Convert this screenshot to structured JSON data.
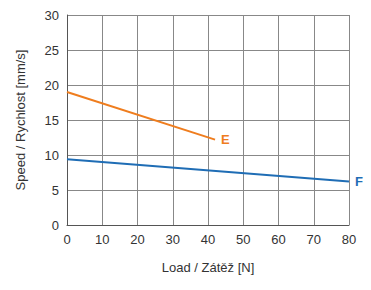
{
  "chart_data": {
    "type": "line",
    "x_label": "Load / Zátěž [N]",
    "y_label": "Speed / Rychlost [mm/s]",
    "series": [
      {
        "name": "E",
        "color": "#ef7d1e",
        "x": [
          0,
          42
        ],
        "values": [
          19,
          12.2
        ]
      },
      {
        "name": "F",
        "color": "#1f6db5",
        "x": [
          0,
          80
        ],
        "values": [
          9.4,
          6.2
        ]
      }
    ],
    "xlim": [
      0,
      80
    ],
    "xticks": [
      0,
      10,
      20,
      30,
      40,
      50,
      60,
      70,
      80
    ],
    "ylim": [
      0,
      30
    ],
    "yticks": [
      0,
      5,
      10,
      15,
      20,
      25,
      30
    ],
    "grid": true
  }
}
